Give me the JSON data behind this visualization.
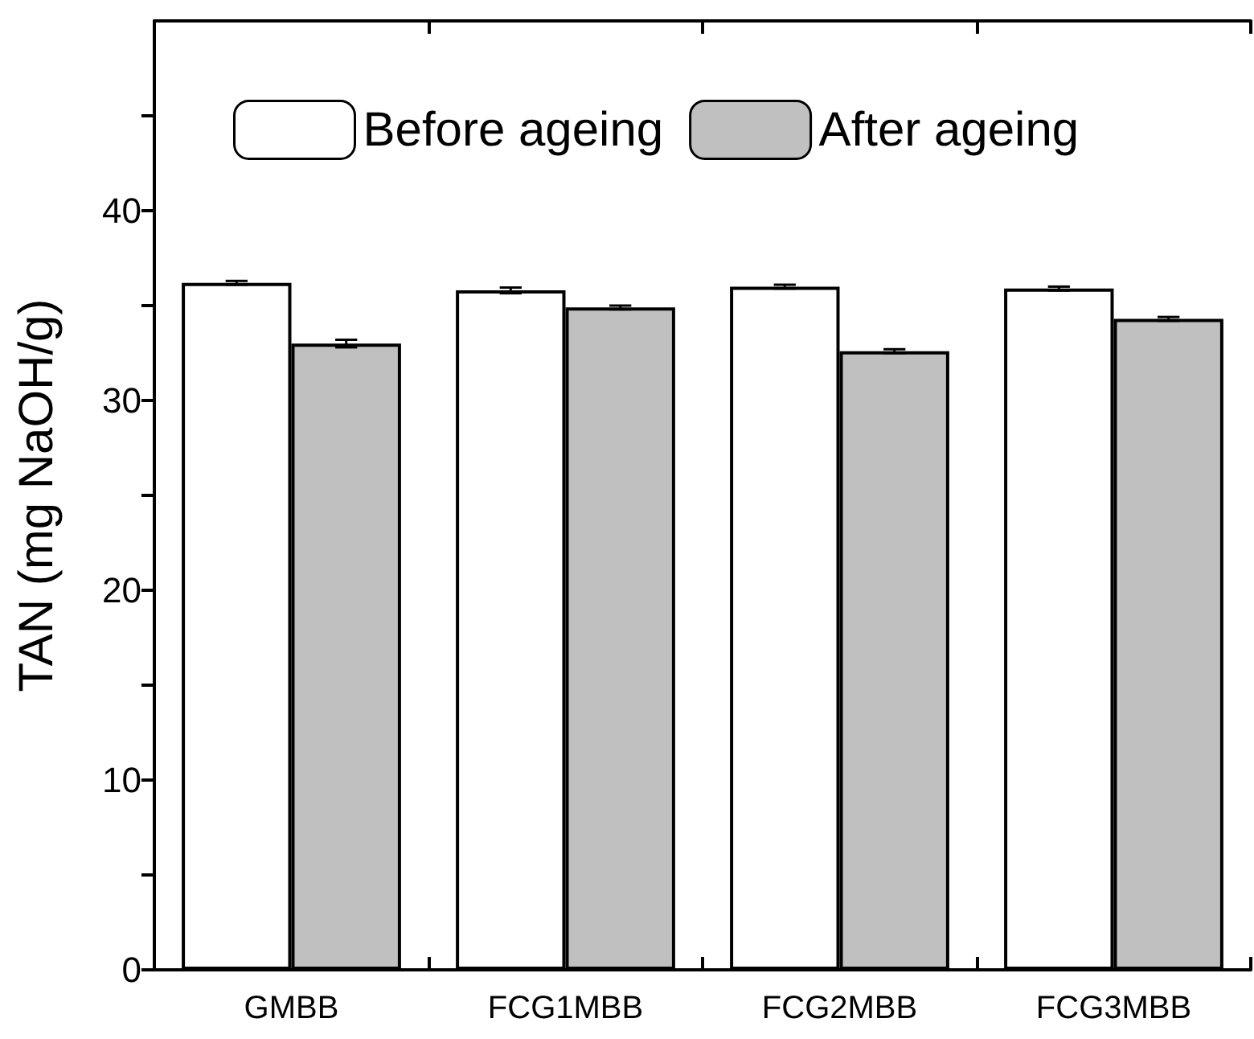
{
  "chart_data": {
    "type": "bar",
    "ylabel": "TAN (mg NaOH/g)",
    "categories": [
      "GMBB",
      "FCG1MBB",
      "FCG2MBB",
      "FCG3MBB"
    ],
    "series": [
      {
        "name": "Before ageing",
        "color": "#ffffff",
        "values": [
          36.2,
          35.8,
          36.0,
          35.9
        ],
        "errors": [
          0.1,
          0.15,
          0.1,
          0.1
        ]
      },
      {
        "name": "After ageing",
        "color": "#c0c0c0",
        "values": [
          33.0,
          34.9,
          32.6,
          34.3
        ],
        "errors": [
          0.2,
          0.1,
          0.1,
          0.1
        ]
      }
    ],
    "ylim": [
      0,
      50
    ],
    "yticks": [
      0,
      {
        "value": 5,
        "label": null
      },
      10,
      {
        "value": 15,
        "label": null
      },
      20,
      {
        "value": 25,
        "label": null
      },
      30,
      {
        "value": 35,
        "label": null
      },
      40,
      {
        "value": 45,
        "label": null
      }
    ],
    "grid": false,
    "legend": "top left"
  }
}
